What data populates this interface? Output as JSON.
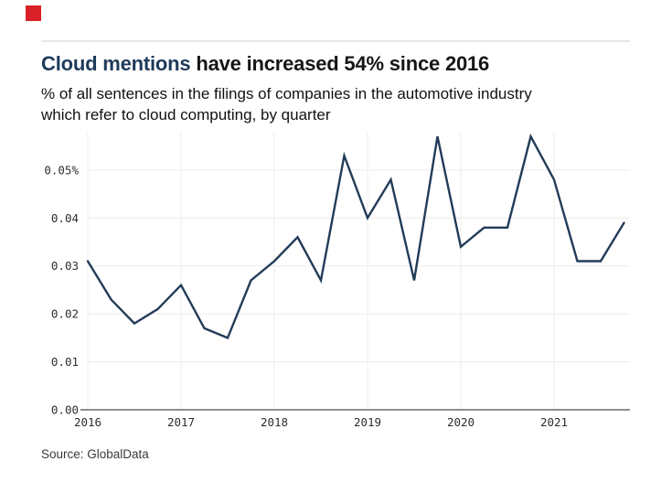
{
  "branding": {
    "logo_color": "#da2127"
  },
  "header": {
    "title_highlight": "Cloud mentions",
    "title_rest": " have increased 54% since 2016",
    "title_highlight_color": "#1e3a5a",
    "subtitle_line1": "% of all sentences in the filings of companies in the automotive industry",
    "subtitle_line2": "which refer to cloud computing, by quarter"
  },
  "chart_data": {
    "type": "line",
    "title": "Cloud mentions have increased 54% since 2016",
    "subtitle": "% of all sentences in the filings of companies in the automotive industry which refer to cloud computing, by quarter",
    "categories": [
      "2016 Q1",
      "2016 Q2",
      "2016 Q3",
      "2016 Q4",
      "2017 Q1",
      "2017 Q2",
      "2017 Q3",
      "2017 Q4",
      "2018 Q1",
      "2018 Q2",
      "2018 Q3",
      "2018 Q4",
      "2019 Q1",
      "2019 Q2",
      "2019 Q3",
      "2019 Q4",
      "2020 Q1",
      "2020 Q2",
      "2020 Q3",
      "2020 Q4",
      "2021 Q1",
      "2021 Q2",
      "2021 Q3",
      "2021 Q4"
    ],
    "values": [
      0.031,
      0.023,
      0.018,
      0.021,
      0.026,
      0.017,
      0.015,
      0.027,
      0.031,
      0.036,
      0.027,
      0.053,
      0.04,
      0.048,
      0.027,
      0.057,
      0.034,
      0.038,
      0.038,
      0.057,
      0.048,
      0.031,
      0.031,
      0.039
    ],
    "xlabel": "",
    "ylabel": "",
    "xticks": [
      "2016",
      "2017",
      "2018",
      "2019",
      "2020",
      "2021"
    ],
    "yticks": [
      "0.00",
      "0.01",
      "0.02",
      "0.03",
      "0.04",
      "0.05%"
    ],
    "ytick_values": [
      0.0,
      0.01,
      0.02,
      0.03,
      0.04,
      0.05
    ],
    "ylim": [
      0,
      0.0578
    ],
    "grid": true,
    "legend": "none",
    "line_color": "#223c58",
    "gridline_color": "#ececec",
    "axis_color": "#6b6b6b"
  },
  "footer": {
    "source": "Source: GlobalData"
  }
}
